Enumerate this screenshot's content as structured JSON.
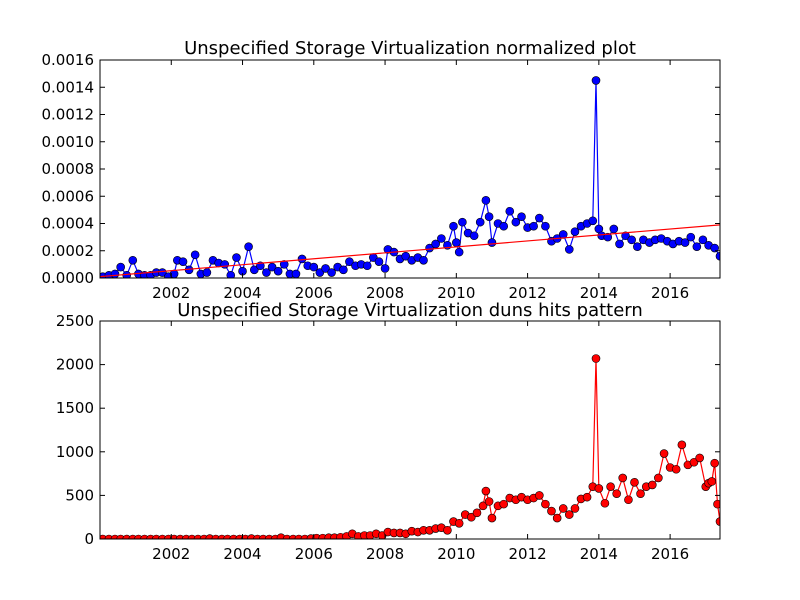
{
  "chart_data": [
    {
      "type": "line",
      "title": "Unspecified Storage Virtualization normalized plot",
      "xlabel": "",
      "ylabel": "",
      "xlim": [
        2000.0,
        2017.4
      ],
      "ylim": [
        0,
        0.0016
      ],
      "x_ticks": [
        2002,
        2004,
        2006,
        2008,
        2010,
        2012,
        2014,
        2016
      ],
      "y_ticks": [
        "0.0000",
        "0.0002",
        "0.0004",
        "0.0006",
        "0.0008",
        "0.0010",
        "0.0012",
        "0.0014",
        "0.0016"
      ],
      "grid": false,
      "series": [
        {
          "color": "#0000ff",
          "marker": "circle",
          "points": [
            [
              2000.08,
              1e-05
            ],
            [
              2000.25,
              2e-05
            ],
            [
              2000.42,
              3e-05
            ],
            [
              2000.58,
              8e-05
            ],
            [
              2000.75,
              2e-05
            ],
            [
              2000.92,
              0.00013
            ],
            [
              2001.08,
              3e-05
            ],
            [
              2001.25,
              2e-05
            ],
            [
              2001.42,
              2e-05
            ],
            [
              2001.58,
              4e-05
            ],
            [
              2001.75,
              4e-05
            ],
            [
              2001.92,
              1e-05
            ],
            [
              2002.08,
              3e-05
            ],
            [
              2002.17,
              0.00013
            ],
            [
              2002.33,
              0.00012
            ],
            [
              2002.5,
              6e-05
            ],
            [
              2002.67,
              0.00017
            ],
            [
              2002.83,
              3e-05
            ],
            [
              2003.0,
              4e-05
            ],
            [
              2003.17,
              0.00013
            ],
            [
              2003.33,
              0.00011
            ],
            [
              2003.5,
              0.0001
            ],
            [
              2003.67,
              2e-05
            ],
            [
              2003.83,
              0.00015
            ],
            [
              2004.0,
              5e-05
            ],
            [
              2004.17,
              0.00023
            ],
            [
              2004.33,
              6e-05
            ],
            [
              2004.5,
              9e-05
            ],
            [
              2004.67,
              4e-05
            ],
            [
              2004.83,
              8e-05
            ],
            [
              2005.0,
              5e-05
            ],
            [
              2005.17,
              0.0001
            ],
            [
              2005.33,
              3e-05
            ],
            [
              2005.5,
              3e-05
            ],
            [
              2005.67,
              0.00014
            ],
            [
              2005.83,
              9e-05
            ],
            [
              2006.0,
              8e-05
            ],
            [
              2006.17,
              4e-05
            ],
            [
              2006.33,
              7e-05
            ],
            [
              2006.5,
              4e-05
            ],
            [
              2006.67,
              8e-05
            ],
            [
              2006.83,
              6e-05
            ],
            [
              2007.0,
              0.00012
            ],
            [
              2007.17,
              9e-05
            ],
            [
              2007.33,
              0.0001
            ],
            [
              2007.5,
              9e-05
            ],
            [
              2007.67,
              0.00015
            ],
            [
              2007.83,
              0.00012
            ],
            [
              2008.0,
              7e-05
            ],
            [
              2008.08,
              0.00021
            ],
            [
              2008.25,
              0.00019
            ],
            [
              2008.42,
              0.00014
            ],
            [
              2008.58,
              0.00016
            ],
            [
              2008.75,
              0.00013
            ],
            [
              2008.92,
              0.00015
            ],
            [
              2009.08,
              0.00013
            ],
            [
              2009.25,
              0.00022
            ],
            [
              2009.42,
              0.00025
            ],
            [
              2009.58,
              0.00029
            ],
            [
              2009.75,
              0.00024
            ],
            [
              2009.92,
              0.00038
            ],
            [
              2010.0,
              0.00026
            ],
            [
              2010.08,
              0.00019
            ],
            [
              2010.17,
              0.00041
            ],
            [
              2010.33,
              0.00033
            ],
            [
              2010.5,
              0.00031
            ],
            [
              2010.67,
              0.00041
            ],
            [
              2010.83,
              0.00057
            ],
            [
              2010.92,
              0.00045
            ],
            [
              2011.0,
              0.00026
            ],
            [
              2011.17,
              0.0004
            ],
            [
              2011.33,
              0.00038
            ],
            [
              2011.5,
              0.00049
            ],
            [
              2011.67,
              0.00041
            ],
            [
              2011.83,
              0.00045
            ],
            [
              2012.0,
              0.00037
            ],
            [
              2012.17,
              0.00038
            ],
            [
              2012.33,
              0.00044
            ],
            [
              2012.5,
              0.00038
            ],
            [
              2012.67,
              0.00027
            ],
            [
              2012.83,
              0.00029
            ],
            [
              2013.0,
              0.00032
            ],
            [
              2013.17,
              0.00021
            ],
            [
              2013.33,
              0.00034
            ],
            [
              2013.5,
              0.00038
            ],
            [
              2013.67,
              0.0004
            ],
            [
              2013.83,
              0.00042
            ],
            [
              2013.92,
              0.00145
            ],
            [
              2014.0,
              0.00036
            ],
            [
              2014.08,
              0.00031
            ],
            [
              2014.25,
              0.0003
            ],
            [
              2014.42,
              0.00036
            ],
            [
              2014.58,
              0.00025
            ],
            [
              2014.75,
              0.00031
            ],
            [
              2014.92,
              0.00028
            ],
            [
              2015.08,
              0.00023
            ],
            [
              2015.25,
              0.00028
            ],
            [
              2015.42,
              0.00026
            ],
            [
              2015.58,
              0.00028
            ],
            [
              2015.75,
              0.00029
            ],
            [
              2015.92,
              0.00027
            ],
            [
              2016.08,
              0.00025
            ],
            [
              2016.25,
              0.00027
            ],
            [
              2016.42,
              0.00026
            ],
            [
              2016.58,
              0.0003
            ],
            [
              2016.75,
              0.00023
            ],
            [
              2016.92,
              0.00028
            ],
            [
              2017.08,
              0.00024
            ],
            [
              2017.25,
              0.00022
            ],
            [
              2017.4,
              0.00016
            ]
          ]
        },
        {
          "color": "#ff0000",
          "marker": "none",
          "points": [
            [
              2000.0,
              1e-05
            ],
            [
              2017.4,
              0.00039
            ]
          ]
        }
      ]
    },
    {
      "type": "line",
      "title": "Unspecified Storage Virtualization duns hits pattern",
      "xlabel": "",
      "ylabel": "",
      "xlim": [
        2000.0,
        2017.4
      ],
      "ylim": [
        0,
        2500
      ],
      "x_ticks": [
        2002,
        2004,
        2006,
        2008,
        2010,
        2012,
        2014,
        2016
      ],
      "y_ticks": [
        "0",
        "500",
        "1000",
        "1500",
        "2000",
        "2500"
      ],
      "grid": false,
      "series": [
        {
          "color": "#ff0000",
          "marker": "circle",
          "points": [
            [
              2000.08,
              0
            ],
            [
              2000.25,
              0
            ],
            [
              2000.42,
              0
            ],
            [
              2000.58,
              0
            ],
            [
              2000.75,
              0
            ],
            [
              2000.92,
              0
            ],
            [
              2001.08,
              0
            ],
            [
              2001.25,
              0
            ],
            [
              2001.42,
              0
            ],
            [
              2001.58,
              0
            ],
            [
              2001.75,
              0
            ],
            [
              2001.92,
              0
            ],
            [
              2002.08,
              0
            ],
            [
              2002.25,
              0
            ],
            [
              2002.42,
              0
            ],
            [
              2002.58,
              0
            ],
            [
              2002.75,
              0
            ],
            [
              2002.92,
              0
            ],
            [
              2003.08,
              5
            ],
            [
              2003.25,
              0
            ],
            [
              2003.42,
              0
            ],
            [
              2003.58,
              0
            ],
            [
              2003.75,
              0
            ],
            [
              2003.92,
              0
            ],
            [
              2004.08,
              0
            ],
            [
              2004.25,
              5
            ],
            [
              2004.42,
              0
            ],
            [
              2004.58,
              0
            ],
            [
              2004.75,
              0
            ],
            [
              2004.92,
              0
            ],
            [
              2005.08,
              15
            ],
            [
              2005.25,
              0
            ],
            [
              2005.42,
              0
            ],
            [
              2005.58,
              0
            ],
            [
              2005.75,
              0
            ],
            [
              2005.92,
              5
            ],
            [
              2006.08,
              10
            ],
            [
              2006.25,
              10
            ],
            [
              2006.42,
              15
            ],
            [
              2006.58,
              15
            ],
            [
              2006.75,
              20
            ],
            [
              2006.92,
              30
            ],
            [
              2007.08,
              60
            ],
            [
              2007.25,
              30
            ],
            [
              2007.42,
              40
            ],
            [
              2007.58,
              40
            ],
            [
              2007.75,
              60
            ],
            [
              2007.92,
              40
            ],
            [
              2008.08,
              80
            ],
            [
              2008.25,
              70
            ],
            [
              2008.42,
              70
            ],
            [
              2008.58,
              60
            ],
            [
              2008.75,
              90
            ],
            [
              2008.92,
              80
            ],
            [
              2009.08,
              100
            ],
            [
              2009.25,
              100
            ],
            [
              2009.42,
              120
            ],
            [
              2009.58,
              130
            ],
            [
              2009.75,
              100
            ],
            [
              2009.92,
              200
            ],
            [
              2010.08,
              180
            ],
            [
              2010.25,
              280
            ],
            [
              2010.42,
              250
            ],
            [
              2010.58,
              300
            ],
            [
              2010.75,
              380
            ],
            [
              2010.83,
              550
            ],
            [
              2010.92,
              430
            ],
            [
              2011.0,
              240
            ],
            [
              2011.17,
              380
            ],
            [
              2011.33,
              400
            ],
            [
              2011.5,
              470
            ],
            [
              2011.67,
              450
            ],
            [
              2011.83,
              480
            ],
            [
              2012.0,
              450
            ],
            [
              2012.17,
              470
            ],
            [
              2012.33,
              500
            ],
            [
              2012.5,
              400
            ],
            [
              2012.67,
              320
            ],
            [
              2012.83,
              240
            ],
            [
              2013.0,
              350
            ],
            [
              2013.17,
              280
            ],
            [
              2013.33,
              350
            ],
            [
              2013.5,
              460
            ],
            [
              2013.67,
              480
            ],
            [
              2013.83,
              600
            ],
            [
              2013.92,
              2070
            ],
            [
              2014.0,
              580
            ],
            [
              2014.17,
              410
            ],
            [
              2014.33,
              600
            ],
            [
              2014.5,
              520
            ],
            [
              2014.67,
              700
            ],
            [
              2014.83,
              450
            ],
            [
              2015.0,
              650
            ],
            [
              2015.17,
              520
            ],
            [
              2015.33,
              600
            ],
            [
              2015.5,
              620
            ],
            [
              2015.67,
              700
            ],
            [
              2015.83,
              980
            ],
            [
              2016.0,
              820
            ],
            [
              2016.17,
              800
            ],
            [
              2016.33,
              1080
            ],
            [
              2016.5,
              850
            ],
            [
              2016.67,
              880
            ],
            [
              2016.83,
              930
            ],
            [
              2017.0,
              600
            ],
            [
              2017.08,
              640
            ],
            [
              2017.17,
              660
            ],
            [
              2017.25,
              870
            ],
            [
              2017.33,
              400
            ],
            [
              2017.4,
              200
            ]
          ]
        }
      ]
    }
  ]
}
